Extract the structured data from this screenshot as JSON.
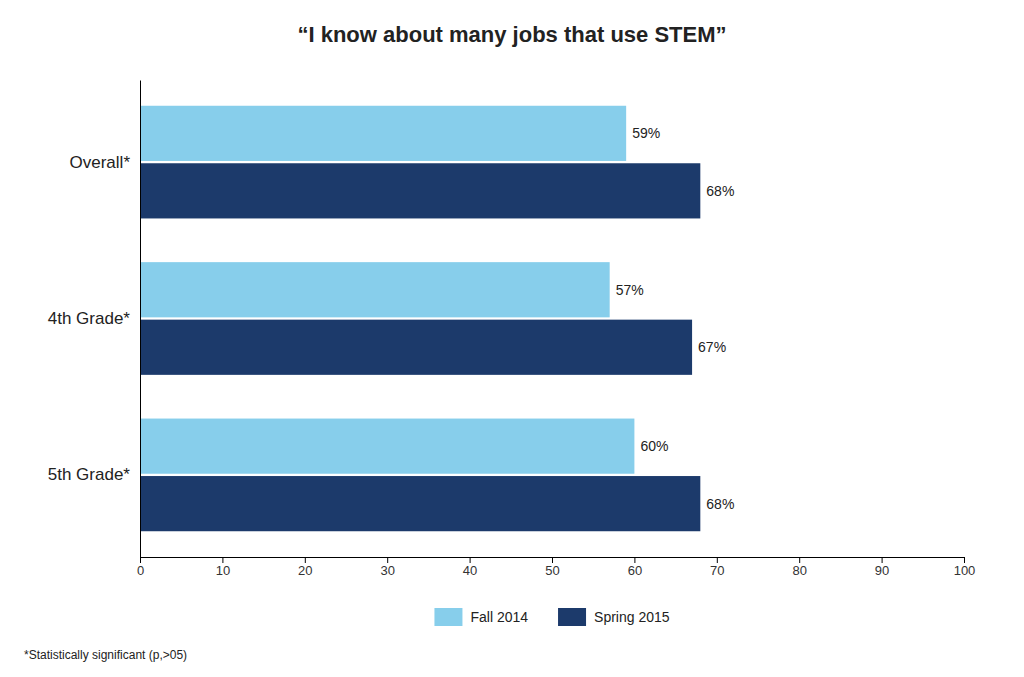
{
  "chart_data": {
    "type": "bar",
    "orientation": "horizontal",
    "title": "“I know about many jobs that use STEM”",
    "categories": [
      "Overall*",
      "4th Grade*",
      "5th Grade*"
    ],
    "series": [
      {
        "name": "Fall 2014",
        "color": "#87CEEB",
        "values": [
          59,
          57,
          60
        ],
        "value_labels": [
          "59%",
          "57%",
          "60%"
        ]
      },
      {
        "name": "Spring 2015",
        "color": "#1C3A6B",
        "values": [
          68,
          67,
          68
        ],
        "value_labels": [
          "68%",
          "67%",
          "68%"
        ]
      }
    ],
    "xlim": [
      0,
      100
    ],
    "xticks": [
      0,
      10,
      20,
      30,
      40,
      50,
      60,
      70,
      80,
      90,
      100
    ],
    "data_labels": true,
    "grid": false,
    "legend": "bottom",
    "annotations": [
      "*Statistically significant (p,>05)"
    ]
  }
}
